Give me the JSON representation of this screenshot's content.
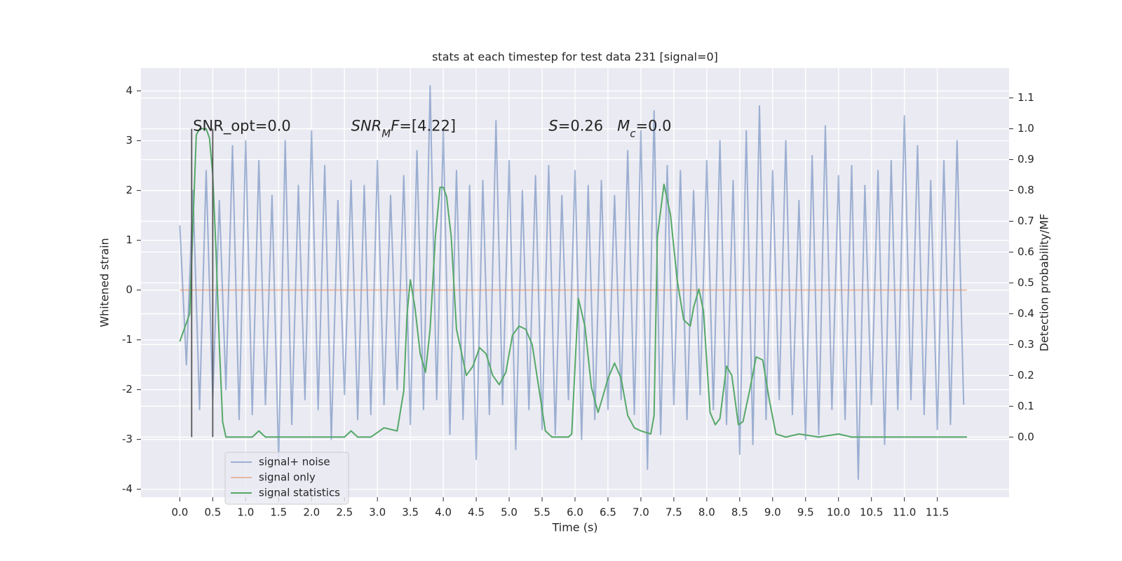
{
  "chart_data": {
    "type": "line",
    "title": "stats at each timestep for test data 231 [signal=0]",
    "xlabel": "Time (s)",
    "ylabel": "Whitened strain",
    "y2label": "Detection probability/MF",
    "xlim": [
      -0.59,
      12.59
    ],
    "ylim": [
      -4.16,
      4.46
    ],
    "y2lim": [
      -0.195,
      1.197
    ],
    "xticks": [
      {
        "value": 0,
        "label": "0.0"
      },
      0.5,
      {
        "value": 1,
        "label": "1.0"
      },
      1.5,
      {
        "value": 2,
        "label": "2.0"
      },
      2.5,
      {
        "value": 3,
        "label": "3.0"
      },
      3.5,
      {
        "value": 4,
        "label": "4.0"
      },
      4.5,
      {
        "value": 5,
        "label": "5.0"
      },
      5.5,
      {
        "value": 6,
        "label": "6.0"
      },
      6.5,
      {
        "value": 7,
        "label": "7.0"
      },
      7.5,
      {
        "value": 8,
        "label": "8.0"
      },
      8.5,
      {
        "value": 9,
        "label": "9.0"
      },
      9.5,
      {
        "value": 10,
        "label": "10.0"
      },
      10.5,
      {
        "value": 11,
        "label": "11.0"
      },
      11.5
    ],
    "yticks": [
      -4,
      -3,
      -2,
      -1,
      0,
      1,
      2,
      3,
      4
    ],
    "y2ticks": [
      {
        "value": 0,
        "label": "0.0"
      },
      0.1,
      0.2,
      0.3,
      0.4,
      0.5,
      0.6,
      0.7,
      0.8,
      0.9,
      {
        "value": 1,
        "label": "1.0"
      },
      1.1
    ],
    "grid": true,
    "legend": "lower left",
    "series": [
      {
        "name": "signal+ noise",
        "color": "#4c72b0",
        "alpha": 0.5,
        "axis": "y",
        "x": [
          0,
          0.1,
          0.2,
          0.3,
          0.4,
          0.5,
          0.6,
          0.7,
          0.8,
          0.9,
          1,
          1.1,
          1.2,
          1.3,
          1.4,
          1.5,
          1.6,
          1.7,
          1.8,
          1.9,
          2,
          2.1,
          2.2,
          2.3,
          2.4,
          2.5,
          2.6,
          2.7,
          2.8,
          2.9,
          3,
          3.1,
          3.2,
          3.3,
          3.4,
          3.5,
          3.6,
          3.7,
          3.8,
          3.9,
          4,
          4.1,
          4.2,
          4.3,
          4.4,
          4.5,
          4.6,
          4.7,
          4.8,
          4.9,
          5,
          5.1,
          5.2,
          5.3,
          5.4,
          5.5,
          5.6,
          5.7,
          5.8,
          5.9,
          6,
          6.1,
          6.2,
          6.3,
          6.4,
          6.5,
          6.6,
          6.7,
          6.8,
          6.9,
          7,
          7.1,
          7.2,
          7.3,
          7.4,
          7.5,
          7.6,
          7.7,
          7.8,
          7.9,
          8,
          8.1,
          8.2,
          8.3,
          8.4,
          8.5,
          8.6,
          8.7,
          8.8,
          8.9,
          9,
          9.1,
          9.2,
          9.3,
          9.4,
          9.5,
          9.6,
          9.7,
          9.8,
          9.9,
          10,
          10.1,
          10.2,
          10.3,
          10.4,
          10.5,
          10.6,
          10.7,
          10.8,
          10.9,
          11,
          11.1,
          11.2,
          11.3,
          11.4,
          11.5,
          11.6,
          11.7,
          11.8,
          11.9
        ],
        "values": [
          1.3,
          -1.5,
          2.0,
          -2.4,
          2.4,
          -2.2,
          1.8,
          -2.0,
          2.9,
          -2.6,
          3.0,
          -2.5,
          2.6,
          -2.3,
          1.9,
          -3.4,
          3.0,
          -2.7,
          2.1,
          -2.2,
          3.2,
          -2.4,
          2.5,
          -3.0,
          1.8,
          -2.1,
          2.2,
          -2.6,
          2.1,
          -2.5,
          2.6,
          -2.3,
          1.9,
          -2.0,
          2.3,
          -2.7,
          2.8,
          -2.4,
          4.1,
          -2.2,
          3.2,
          -2.9,
          2.4,
          -2.6,
          2.1,
          -3.4,
          2.2,
          -2.5,
          3.4,
          -2.3,
          2.6,
          -3.2,
          2.0,
          -2.4,
          2.3,
          -2.8,
          2.5,
          -2.9,
          1.9,
          -2.2,
          2.4,
          -3.0,
          2.1,
          -2.6,
          2.2,
          -2.4,
          1.9,
          -2.2,
          2.8,
          -2.5,
          3.2,
          -3.6,
          3.6,
          -2.9,
          2.5,
          -2.3,
          2.4,
          -2.6,
          2.0,
          -2.1,
          2.6,
          -2.4,
          3.0,
          -2.7,
          2.2,
          -3.3,
          3.2,
          -3.1,
          3.7,
          -2.6,
          2.4,
          -2.2,
          3.0,
          -2.5,
          1.8,
          -3.0,
          2.7,
          -2.9,
          3.3,
          -2.4,
          2.3,
          -2.6,
          2.5,
          -3.8,
          2.1,
          -2.3,
          2.4,
          -3.1,
          2.6,
          -2.4,
          3.5,
          -2.2,
          2.9,
          -2.5,
          2.2,
          -2.8,
          2.6,
          -2.7,
          3.0,
          -2.3
        ]
      },
      {
        "name": "signal only",
        "color": "#dd8452",
        "alpha": 0.5,
        "axis": "y",
        "x": [
          0,
          11.95
        ],
        "values": [
          0,
          0
        ]
      },
      {
        "name": "signal statistics",
        "color": "#55a868",
        "alpha": 1,
        "axis": "y2",
        "x": [
          0,
          0.15,
          0.25,
          0.3,
          0.4,
          0.45,
          0.5,
          0.55,
          0.6,
          0.65,
          0.7,
          1.1,
          1.2,
          1.3,
          2.5,
          2.6,
          2.7,
          2.9,
          3.1,
          3.3,
          3.4,
          3.45,
          3.5,
          3.57,
          3.65,
          3.73,
          3.8,
          3.88,
          3.95,
          4.0,
          4.05,
          4.12,
          4.2,
          4.3,
          4.35,
          4.45,
          4.55,
          4.65,
          4.75,
          4.85,
          4.95,
          5.05,
          5.15,
          5.25,
          5.35,
          5.45,
          5.55,
          5.65,
          5.9,
          5.95,
          6.05,
          6.15,
          6.25,
          6.35,
          6.42,
          6.5,
          6.6,
          6.7,
          6.8,
          6.9,
          7.0,
          7.15,
          7.2,
          7.25,
          7.35,
          7.45,
          7.55,
          7.65,
          7.75,
          7.8,
          7.88,
          7.95,
          8.05,
          8.13,
          8.2,
          8.3,
          8.38,
          8.48,
          8.55,
          8.65,
          8.75,
          8.85,
          8.95,
          9.05,
          9.2,
          9.4,
          9.7,
          10.0,
          10.2,
          11.2,
          11.4,
          11.95
        ],
        "values": [
          0.31,
          0.4,
          0.98,
          1.0,
          1.0,
          0.97,
          0.85,
          0.6,
          0.3,
          0.05,
          0.0,
          0.0,
          0.02,
          0.0,
          0.0,
          0.02,
          0.0,
          0.0,
          0.03,
          0.02,
          0.15,
          0.4,
          0.51,
          0.42,
          0.27,
          0.21,
          0.35,
          0.65,
          0.81,
          0.81,
          0.78,
          0.65,
          0.35,
          0.25,
          0.2,
          0.23,
          0.29,
          0.27,
          0.2,
          0.17,
          0.21,
          0.33,
          0.36,
          0.35,
          0.3,
          0.16,
          0.02,
          0.0,
          0.0,
          0.01,
          0.45,
          0.36,
          0.16,
          0.08,
          0.13,
          0.19,
          0.24,
          0.19,
          0.07,
          0.03,
          0.02,
          0.01,
          0.07,
          0.65,
          0.82,
          0.72,
          0.51,
          0.38,
          0.36,
          0.42,
          0.48,
          0.41,
          0.08,
          0.04,
          0.06,
          0.23,
          0.2,
          0.04,
          0.05,
          0.15,
          0.26,
          0.25,
          0.12,
          0.01,
          0.0,
          0.01,
          0.0,
          0.01,
          0.0,
          0.0,
          0.0,
          0.0
        ]
      }
    ],
    "vlines": {
      "x": [
        0.18,
        0.5
      ],
      "y2": [
        0,
        1.0
      ],
      "color": "#555555"
    },
    "annotations": [
      {
        "x": 0.2,
        "y": 3.2,
        "parts": [
          {
            "text": "SNR_opt=0.0",
            "style": "normal"
          }
        ]
      },
      {
        "x": 2.6,
        "y": 3.2,
        "parts": [
          {
            "text": "SNR",
            "style": "italic"
          },
          {
            "text": "M",
            "style": "sub"
          },
          {
            "text": "F",
            "style": "italic"
          },
          {
            "text": "=[4.22]",
            "style": "normal"
          }
        ]
      },
      {
        "x": 5.6,
        "y": 3.2,
        "parts": [
          {
            "text": "S",
            "style": "italic"
          },
          {
            "text": "=0.26   ",
            "style": "normal"
          },
          {
            "text": "M",
            "style": "italic"
          },
          {
            "text": "c",
            "style": "sub"
          },
          {
            "text": "=0.0",
            "style": "normal"
          }
        ]
      }
    ]
  }
}
